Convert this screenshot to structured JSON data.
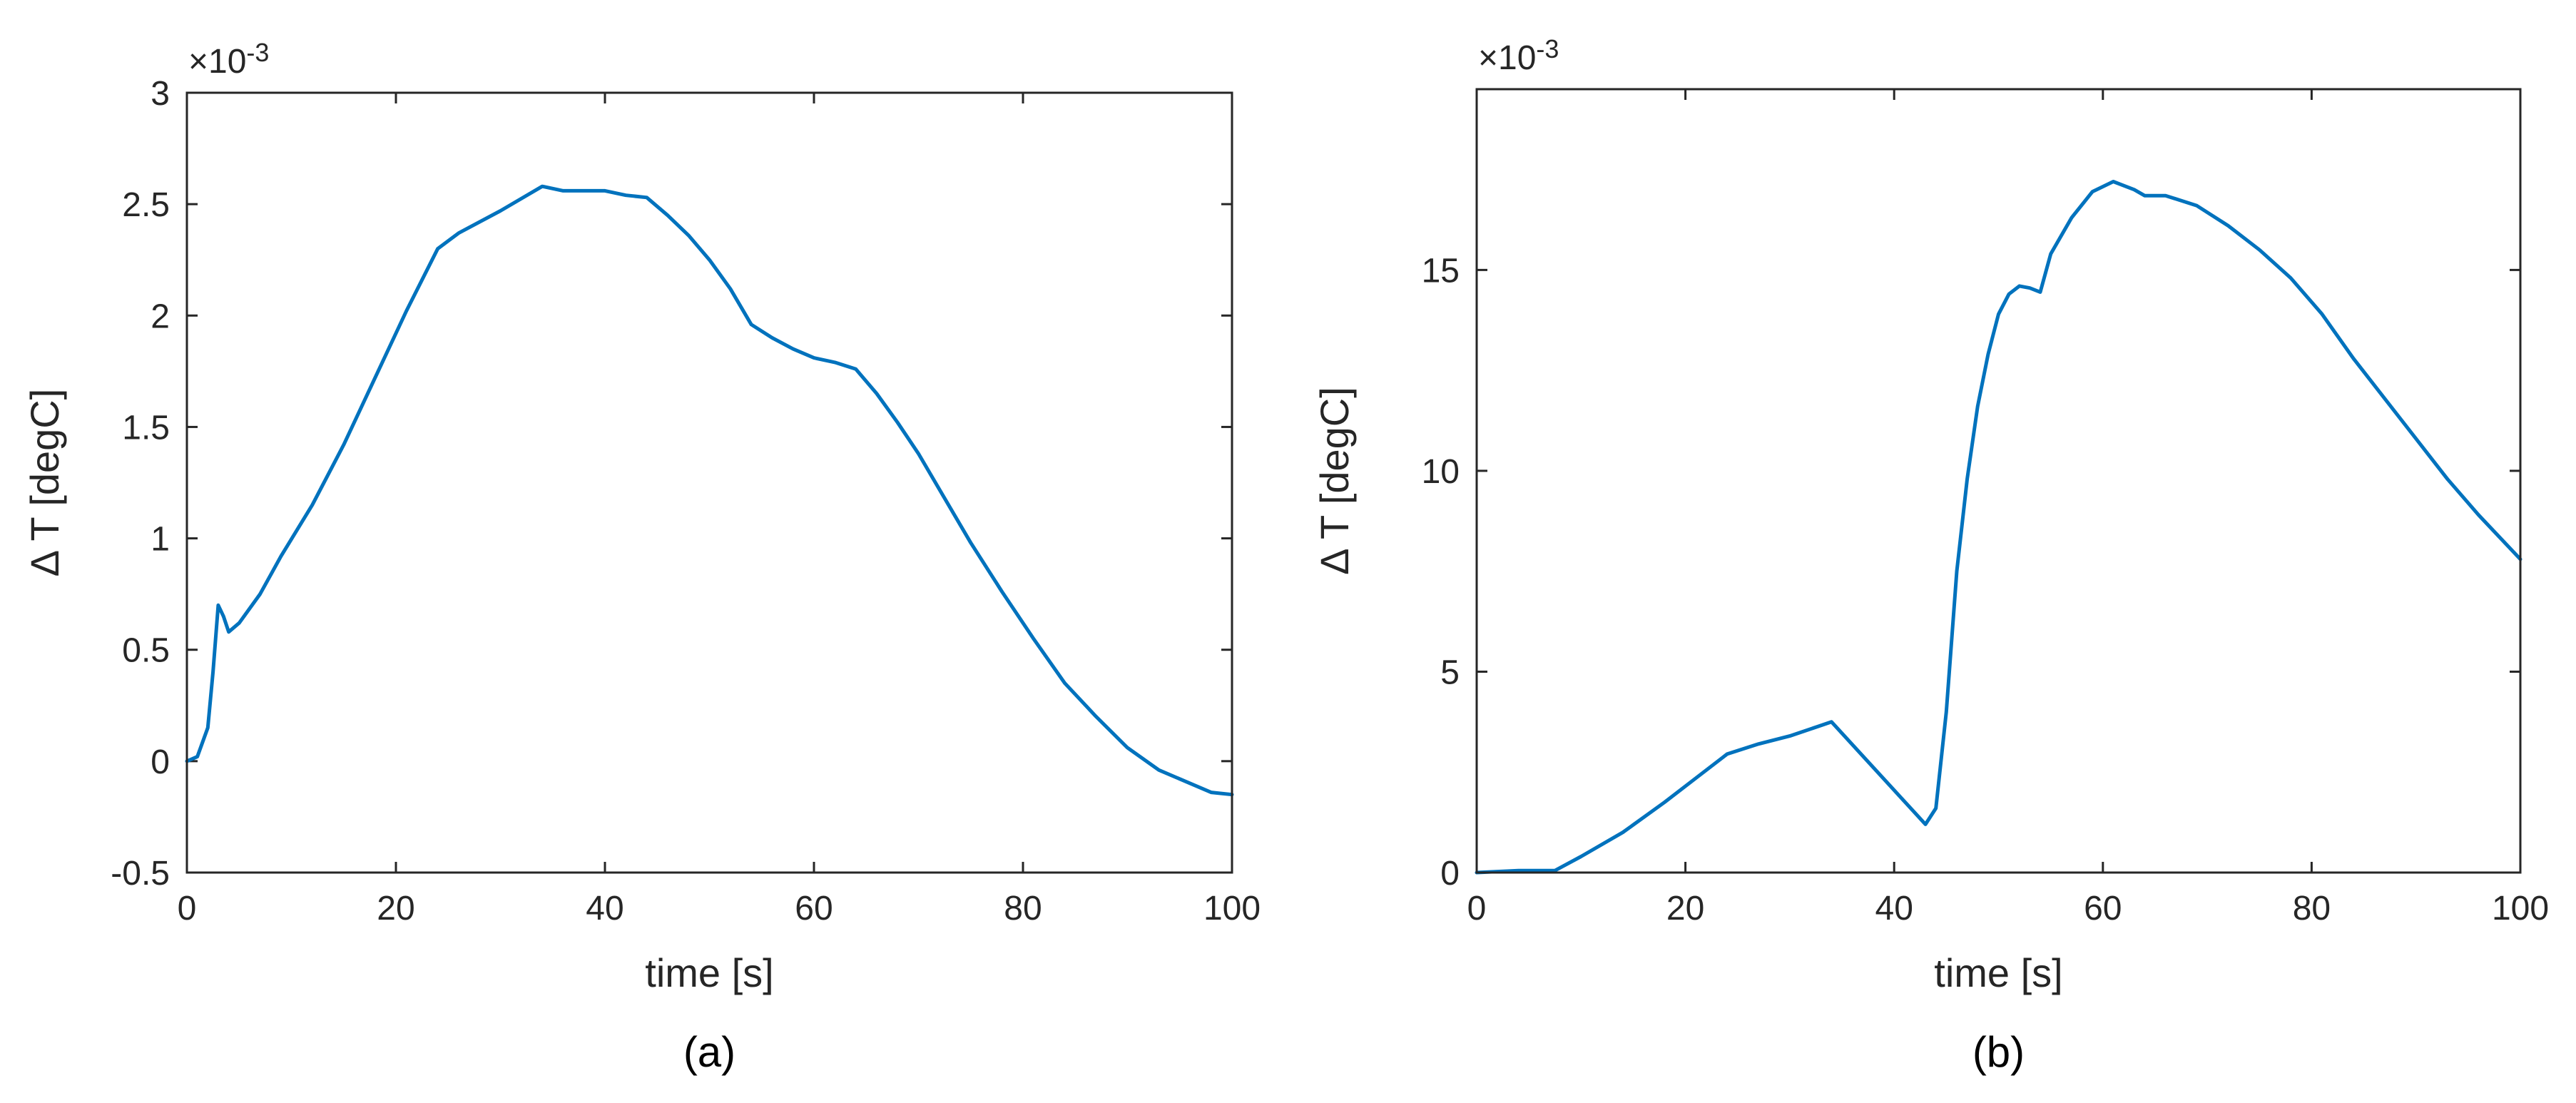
{
  "chart_data": [
    {
      "type": "line",
      "caption": "(a)",
      "title": "",
      "xlabel": "time [s]",
      "ylabel": "Δ T [degC]",
      "exponent_label": "×10",
      "exponent_power": "-3",
      "xlim": [
        0,
        100
      ],
      "ylim": [
        -0.5,
        3
      ],
      "xticks": [
        0,
        20,
        40,
        60,
        80,
        100
      ],
      "xtick_labels": [
        "0",
        "20",
        "40",
        "60",
        "80",
        "100"
      ],
      "yticks": [
        -0.5,
        0,
        0.5,
        1,
        1.5,
        2,
        2.5,
        3
      ],
      "ytick_labels": [
        "-0.5",
        "0",
        "0.5",
        "1",
        "1.5",
        "2",
        "2.5",
        "3"
      ],
      "grid": false,
      "line_color": "#0072BD",
      "series": [
        {
          "x": [
            0,
            1,
            2,
            2.5,
            3,
            3.5,
            4,
            5,
            7,
            9,
            12,
            15,
            18,
            21,
            24,
            26,
            30,
            34,
            36,
            40,
            42,
            44,
            46,
            48,
            50,
            52,
            54,
            56,
            58,
            60,
            62,
            64,
            66,
            68,
            70,
            72,
            75,
            78,
            81,
            84,
            87,
            90,
            93,
            96,
            98,
            100
          ],
          "y": [
            0.0,
            0.02,
            0.15,
            0.4,
            0.7,
            0.65,
            0.58,
            0.62,
            0.75,
            0.92,
            1.15,
            1.42,
            1.72,
            2.02,
            2.3,
            2.37,
            2.47,
            2.58,
            2.56,
            2.56,
            2.54,
            2.53,
            2.45,
            2.36,
            2.25,
            2.12,
            1.96,
            1.9,
            1.85,
            1.81,
            1.79,
            1.76,
            1.65,
            1.52,
            1.38,
            1.22,
            0.98,
            0.76,
            0.55,
            0.35,
            0.2,
            0.06,
            -0.04,
            -0.1,
            -0.14,
            -0.15
          ]
        }
      ]
    },
    {
      "type": "line",
      "caption": "(b)",
      "title": "",
      "xlabel": "time [s]",
      "ylabel": "Δ T [degC]",
      "exponent_label": "×10",
      "exponent_power": "-3",
      "xlim": [
        0,
        100
      ],
      "ylim": [
        0,
        19.5
      ],
      "xticks": [
        0,
        20,
        40,
        60,
        80,
        100
      ],
      "xtick_labels": [
        "0",
        "20",
        "40",
        "60",
        "80",
        "100"
      ],
      "yticks": [
        0,
        5,
        10,
        15
      ],
      "ytick_labels": [
        "0",
        "5",
        "10",
        "15"
      ],
      "grid": false,
      "line_color": "#0072BD",
      "series": [
        {
          "x": [
            0,
            4,
            7.5,
            10,
            14,
            18,
            21,
            24,
            27,
            30,
            34,
            37,
            40,
            43,
            44,
            45,
            46,
            47,
            48,
            49,
            50,
            51,
            52,
            53,
            54,
            55,
            57,
            59,
            61,
            63,
            64,
            66,
            69,
            72,
            75,
            78,
            81,
            84,
            87,
            90,
            93,
            96,
            100
          ],
          "y": [
            0.0,
            0.05,
            0.05,
            0.4,
            1.0,
            1.75,
            2.35,
            2.95,
            3.2,
            3.4,
            3.75,
            2.9,
            2.05,
            1.2,
            1.6,
            4.0,
            7.5,
            9.8,
            11.6,
            12.9,
            13.9,
            14.4,
            14.6,
            14.55,
            14.45,
            15.4,
            16.3,
            16.95,
            17.2,
            17.0,
            16.85,
            16.85,
            16.6,
            16.1,
            15.5,
            14.8,
            13.9,
            12.8,
            11.8,
            10.8,
            9.8,
            8.9,
            7.8
          ]
        }
      ]
    }
  ]
}
